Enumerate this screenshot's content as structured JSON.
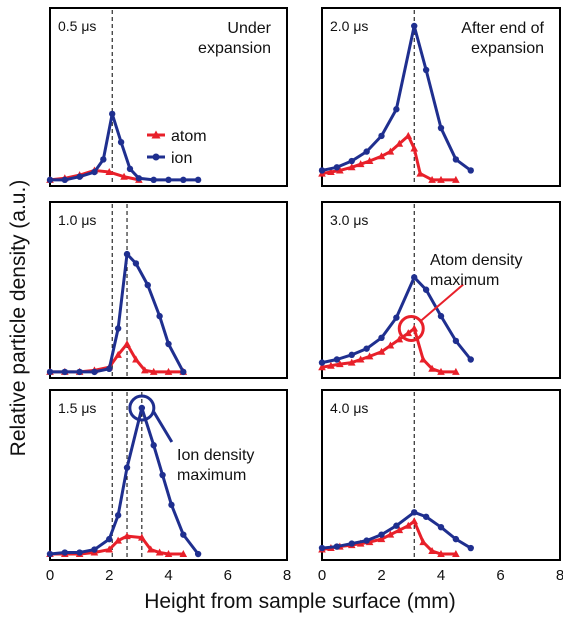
{
  "chart_data": {
    "type": "line",
    "xlabel": "Height from sample surface (mm)",
    "ylabel": "Relative particle density (a.u.)",
    "xlim": [
      0,
      8
    ],
    "ylim": [
      0,
      1
    ],
    "xticks": [
      "0",
      "2",
      "4",
      "6",
      "8"
    ],
    "grid": false,
    "legend": {
      "placement": "inside first panel, center-right",
      "entries": [
        {
          "label": "atom",
          "color": "#e8202a",
          "marker": "triangle"
        },
        {
          "label": "ion",
          "color": "#1f2f8f",
          "marker": "circle"
        }
      ]
    },
    "colors": {
      "atom": "#e8202a",
      "ion": "#1f2f8f"
    },
    "panels": [
      {
        "time": "0.5 μs",
        "note": [
          "Under",
          "expansion"
        ],
        "vlines": [
          2.1
        ],
        "series": [
          {
            "name": "ion",
            "x": [
              0,
              0.5,
              1.0,
              1.5,
              1.8,
              2.1,
              2.4,
              2.7,
              3.0,
              3.5,
              4.0,
              4.5,
              5.0
            ],
            "y": [
              0.02,
              0.02,
              0.04,
              0.07,
              0.15,
              0.44,
              0.26,
              0.09,
              0.03,
              0.02,
              0.02,
              0.02,
              0.02
            ]
          },
          {
            "name": "atom",
            "x": [
              0,
              0.5,
              1.0,
              1.5,
              2.0,
              2.5,
              3.0
            ],
            "y": [
              0.02,
              0.03,
              0.05,
              0.08,
              0.07,
              0.04,
              0.02
            ]
          }
        ]
      },
      {
        "time": "2.0 μs",
        "note": [
          "After end of",
          "expansion"
        ],
        "vlines": [
          3.1
        ],
        "series": [
          {
            "name": "ion",
            "x": [
              0,
              0.5,
              1.0,
              1.5,
              2.0,
              2.5,
              3.1,
              3.5,
              4.0,
              4.5,
              5.0
            ],
            "y": [
              0.08,
              0.1,
              0.14,
              0.2,
              0.3,
              0.47,
              1.0,
              0.72,
              0.35,
              0.15,
              0.08
            ]
          },
          {
            "name": "atom",
            "x": [
              0,
              0.3,
              0.6,
              1.0,
              1.3,
              1.6,
              2.0,
              2.3,
              2.6,
              2.9,
              3.1,
              3.3,
              3.7,
              4.0,
              4.5
            ],
            "y": [
              0.06,
              0.07,
              0.08,
              0.1,
              0.12,
              0.14,
              0.17,
              0.2,
              0.25,
              0.3,
              0.22,
              0.06,
              0.02,
              0.02,
              0.02
            ]
          }
        ]
      },
      {
        "time": "1.0 μs",
        "note": [],
        "vlines": [
          2.1,
          2.6
        ],
        "series": [
          {
            "name": "ion",
            "x": [
              0,
              0.5,
              1.0,
              1.5,
              2.0,
              2.3,
              2.6,
              2.9,
              3.3,
              3.7,
              4.0,
              4.5
            ],
            "y": [
              0.02,
              0.02,
              0.02,
              0.02,
              0.04,
              0.3,
              0.78,
              0.72,
              0.58,
              0.38,
              0.2,
              0.02
            ]
          },
          {
            "name": "atom",
            "x": [
              0,
              0.5,
              1.0,
              1.5,
              2.0,
              2.3,
              2.6,
              2.9,
              3.2,
              3.5,
              4.0,
              4.5
            ],
            "y": [
              0.02,
              0.02,
              0.02,
              0.03,
              0.05,
              0.13,
              0.2,
              0.1,
              0.03,
              0.02,
              0.02,
              0.02
            ]
          }
        ]
      },
      {
        "time": "3.0 μs",
        "note": [],
        "vlines": [
          3.1
        ],
        "series": [
          {
            "name": "ion",
            "x": [
              0,
              0.5,
              1.0,
              1.5,
              2.0,
              2.5,
              3.1,
              3.5,
              4.0,
              4.5,
              5.0
            ],
            "y": [
              0.08,
              0.1,
              0.13,
              0.17,
              0.24,
              0.37,
              0.63,
              0.55,
              0.38,
              0.22,
              0.1
            ]
          },
          {
            "name": "atom",
            "x": [
              0,
              0.3,
              0.6,
              1.0,
              1.3,
              1.6,
              2.0,
              2.3,
              2.6,
              2.9,
              3.1,
              3.4,
              3.7,
              4.0,
              4.5
            ],
            "y": [
              0.05,
              0.06,
              0.07,
              0.08,
              0.1,
              0.12,
              0.15,
              0.19,
              0.23,
              0.27,
              0.3,
              0.1,
              0.04,
              0.02,
              0.02
            ]
          }
        ]
      },
      {
        "time": "1.5 μs",
        "note": [],
        "vlines": [
          2.1,
          2.6,
          3.1
        ],
        "series": [
          {
            "name": "ion",
            "x": [
              0,
              0.5,
              1.0,
              1.5,
              2.0,
              2.3,
              2.6,
              3.1,
              3.5,
              3.8,
              4.1,
              4.5,
              5.0
            ],
            "y": [
              0.02,
              0.03,
              0.03,
              0.05,
              0.12,
              0.28,
              0.6,
              1.0,
              0.75,
              0.55,
              0.35,
              0.15,
              0.02
            ]
          },
          {
            "name": "atom",
            "x": [
              0,
              0.5,
              1.0,
              1.5,
              2.0,
              2.3,
              2.6,
              3.1,
              3.4,
              3.7,
              4.0,
              4.5
            ],
            "y": [
              0.02,
              0.02,
              0.02,
              0.03,
              0.05,
              0.11,
              0.14,
              0.13,
              0.05,
              0.03,
              0.02,
              0.02
            ]
          }
        ]
      },
      {
        "time": "4.0 μs",
        "note": [],
        "vlines": [
          3.1
        ],
        "series": [
          {
            "name": "ion",
            "x": [
              0,
              0.5,
              1.0,
              1.5,
              2.0,
              2.5,
              3.1,
              3.5,
              4.0,
              4.5,
              5.0
            ],
            "y": [
              0.06,
              0.07,
              0.09,
              0.11,
              0.15,
              0.21,
              0.3,
              0.27,
              0.2,
              0.12,
              0.06
            ]
          },
          {
            "name": "atom",
            "x": [
              0,
              0.3,
              0.6,
              1.0,
              1.3,
              1.6,
              2.0,
              2.3,
              2.6,
              2.9,
              3.1,
              3.4,
              3.7,
              4.0,
              4.5
            ],
            "y": [
              0.05,
              0.06,
              0.07,
              0.08,
              0.09,
              0.1,
              0.12,
              0.15,
              0.18,
              0.21,
              0.24,
              0.1,
              0.04,
              0.02,
              0.02
            ]
          }
        ]
      }
    ],
    "annotations": [
      {
        "panel": 3,
        "lines": [
          "Atom density",
          "maximum"
        ],
        "color": "#e8202a",
        "target": {
          "x": 3.0,
          "y": 0.3
        }
      },
      {
        "panel": 4,
        "lines": [
          "Ion density",
          "maximum"
        ],
        "color": "#1f2f8f",
        "target": {
          "x": 3.1,
          "y": 1.0
        }
      }
    ]
  }
}
